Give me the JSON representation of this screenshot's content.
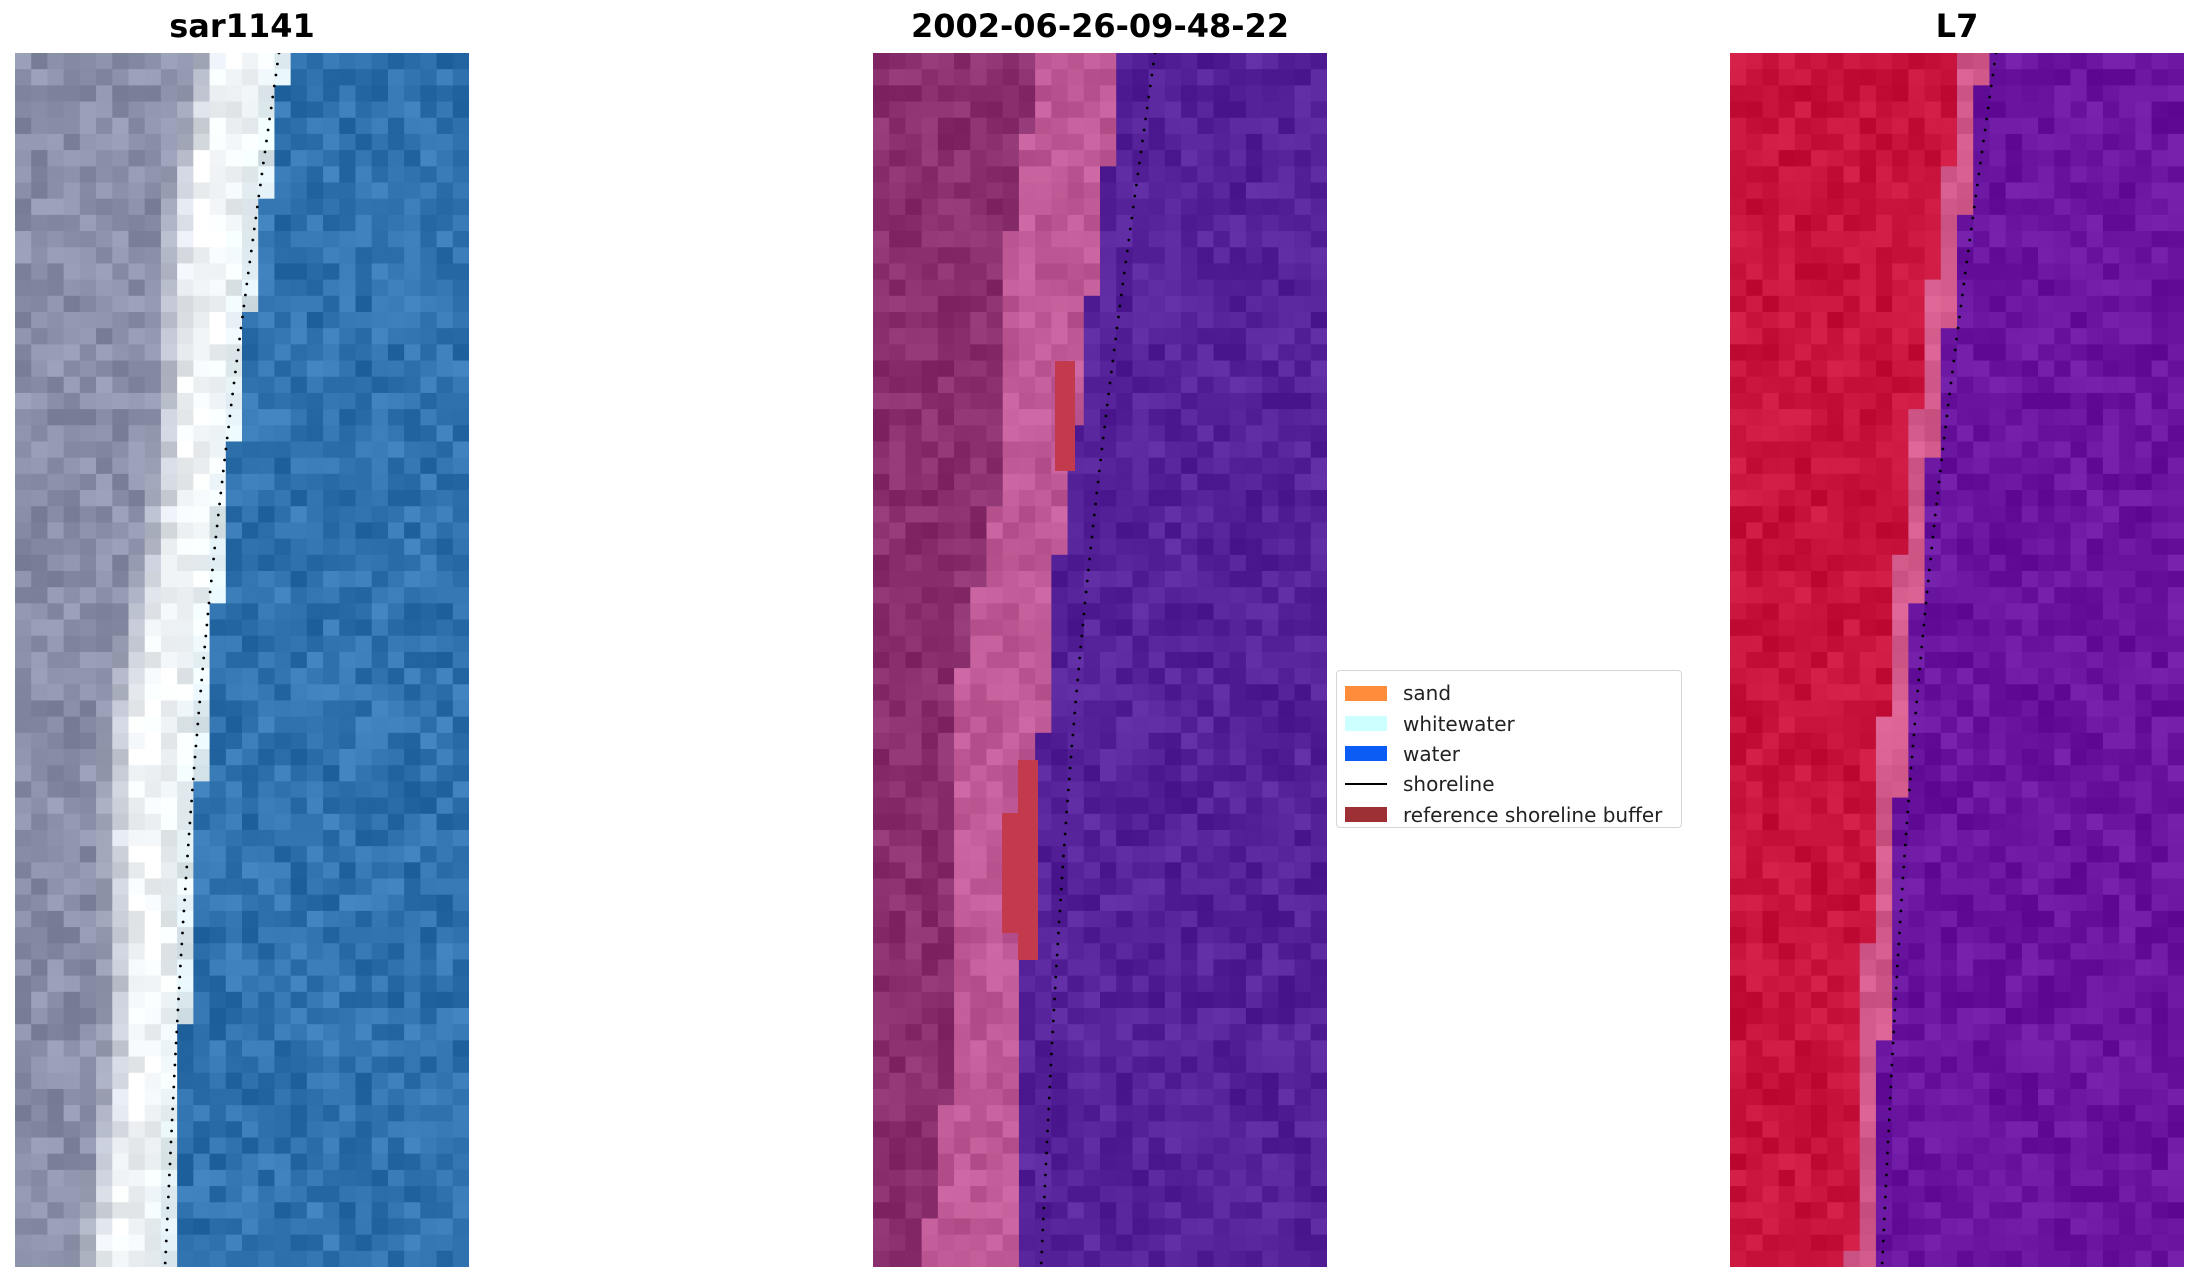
{
  "panels": [
    {
      "title": "sar1141"
    },
    {
      "title": "2002-06-26-09-48-22"
    },
    {
      "title": "L7"
    }
  ],
  "legend": {
    "items": [
      {
        "label": "sand",
        "color": "#ff8c3a",
        "kind": "patch"
      },
      {
        "label": "whitewater",
        "color": "#ccffff",
        "kind": "patch"
      },
      {
        "label": "water",
        "color": "#0a5cf5",
        "kind": "patch"
      },
      {
        "label": "shoreline",
        "color": "#000000",
        "kind": "line"
      },
      {
        "label": "reference shoreline buffer",
        "color": "#9c3035",
        "kind": "patch"
      }
    ]
  },
  "colors": {
    "rgb_water": "#2f72ad",
    "rgb_sand": "#f2f6f8",
    "rgb_land": "#8a8fa8",
    "classified_water": "#552299",
    "classified_land": "#8a2f6e",
    "classified_beach": "#c05a96",
    "classified_buffer": "#c23a4c",
    "falsecolor_land": "#c8143c",
    "falsecolor_beach": "#d25a8a",
    "falsecolor_water": "#6a15a0"
  }
}
